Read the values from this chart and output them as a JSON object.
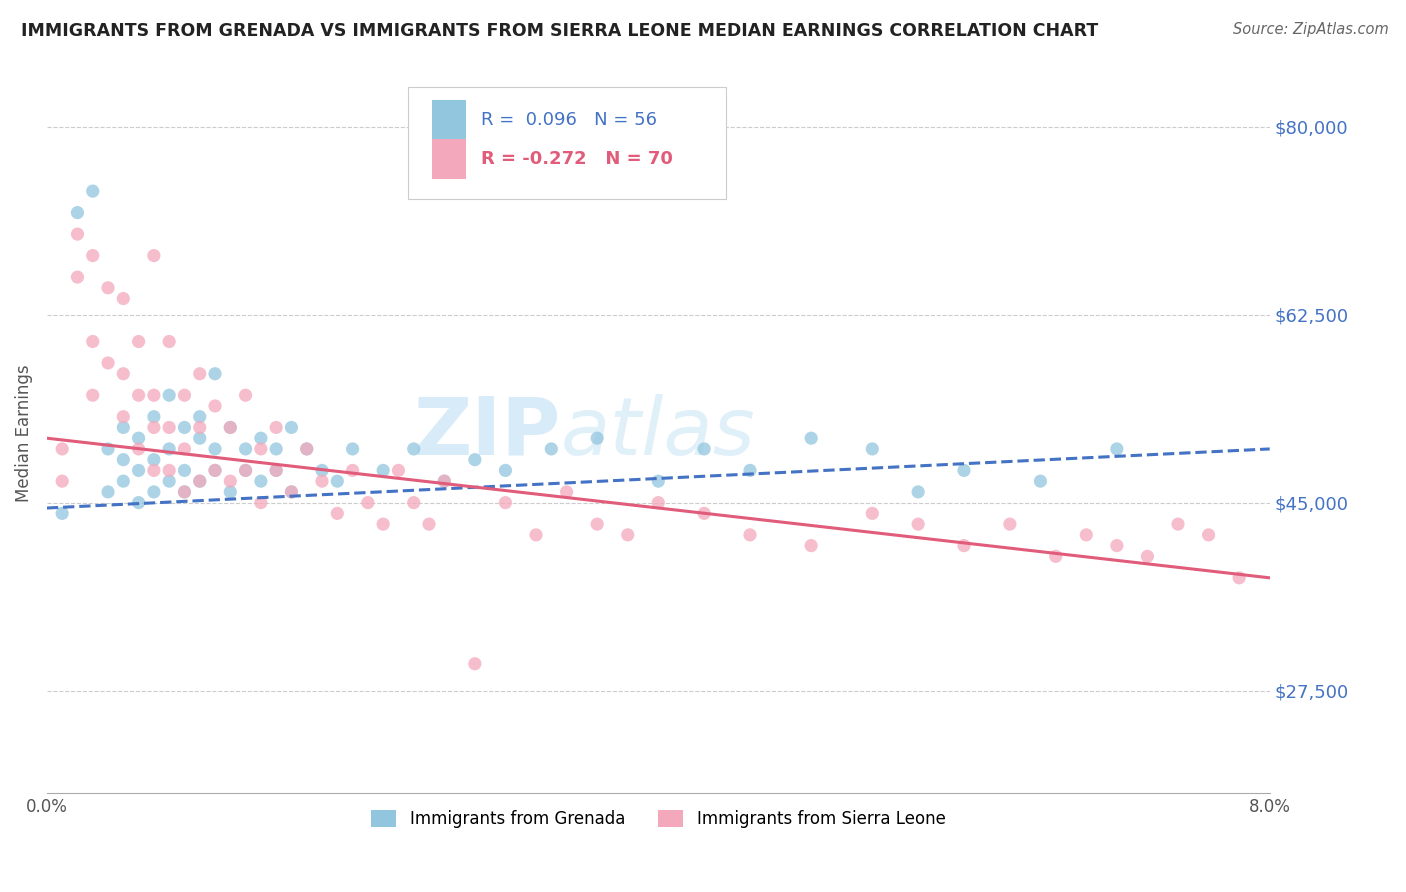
{
  "title": "IMMIGRANTS FROM GRENADA VS IMMIGRANTS FROM SIERRA LEONE MEDIAN EARNINGS CORRELATION CHART",
  "source": "Source: ZipAtlas.com",
  "ylabel": "Median Earnings",
  "y_ticks": [
    27500,
    45000,
    62500,
    80000
  ],
  "y_tick_labels": [
    "$27,500",
    "$45,000",
    "$62,500",
    "$80,000"
  ],
  "x_min": 0.0,
  "x_max": 0.08,
  "y_min": 18000,
  "y_max": 85000,
  "legend_label_1": "Immigrants from Grenada",
  "legend_label_2": "Immigrants from Sierra Leone",
  "R1": 0.096,
  "N1": 56,
  "R2": -0.272,
  "N2": 70,
  "color_blue": "#92c5de",
  "color_pink": "#f4a8bb",
  "color_blue_line": "#4472c4",
  "color_pink_line": "#e05c7a",
  "color_blue_text": "#4472c4",
  "color_pink_text": "#e05c7a",
  "watermark_zip": "ZIP",
  "watermark_atlas": "atlas",
  "background_color": "#ffffff",
  "grenada_x": [
    0.001,
    0.002,
    0.003,
    0.004,
    0.004,
    0.005,
    0.005,
    0.005,
    0.006,
    0.006,
    0.006,
    0.007,
    0.007,
    0.007,
    0.008,
    0.008,
    0.008,
    0.009,
    0.009,
    0.009,
    0.01,
    0.01,
    0.01,
    0.011,
    0.011,
    0.011,
    0.012,
    0.012,
    0.013,
    0.013,
    0.014,
    0.014,
    0.015,
    0.015,
    0.016,
    0.016,
    0.017,
    0.018,
    0.019,
    0.02,
    0.022,
    0.024,
    0.026,
    0.028,
    0.03,
    0.033,
    0.036,
    0.04,
    0.043,
    0.046,
    0.05,
    0.054,
    0.057,
    0.06,
    0.065,
    0.07
  ],
  "grenada_y": [
    44000,
    72000,
    74000,
    46000,
    50000,
    49000,
    52000,
    47000,
    48000,
    51000,
    45000,
    53000,
    49000,
    46000,
    55000,
    50000,
    47000,
    52000,
    48000,
    46000,
    51000,
    47000,
    53000,
    57000,
    50000,
    48000,
    46000,
    52000,
    50000,
    48000,
    51000,
    47000,
    50000,
    48000,
    46000,
    52000,
    50000,
    48000,
    47000,
    50000,
    48000,
    50000,
    47000,
    49000,
    48000,
    50000,
    51000,
    47000,
    50000,
    48000,
    51000,
    50000,
    46000,
    48000,
    47000,
    50000
  ],
  "sierra_leone_x": [
    0.001,
    0.001,
    0.002,
    0.002,
    0.003,
    0.003,
    0.003,
    0.004,
    0.004,
    0.005,
    0.005,
    0.005,
    0.006,
    0.006,
    0.006,
    0.007,
    0.007,
    0.007,
    0.007,
    0.008,
    0.008,
    0.008,
    0.009,
    0.009,
    0.009,
    0.01,
    0.01,
    0.01,
    0.011,
    0.011,
    0.012,
    0.012,
    0.013,
    0.013,
    0.014,
    0.014,
    0.015,
    0.015,
    0.016,
    0.017,
    0.018,
    0.019,
    0.02,
    0.021,
    0.022,
    0.023,
    0.024,
    0.025,
    0.026,
    0.028,
    0.03,
    0.032,
    0.034,
    0.036,
    0.038,
    0.04,
    0.043,
    0.046,
    0.05,
    0.054,
    0.057,
    0.06,
    0.063,
    0.066,
    0.068,
    0.07,
    0.072,
    0.074,
    0.076,
    0.078
  ],
  "sierra_leone_y": [
    47000,
    50000,
    70000,
    66000,
    68000,
    60000,
    55000,
    65000,
    58000,
    64000,
    57000,
    53000,
    60000,
    55000,
    50000,
    68000,
    55000,
    52000,
    48000,
    60000,
    52000,
    48000,
    55000,
    50000,
    46000,
    57000,
    52000,
    47000,
    54000,
    48000,
    52000,
    47000,
    55000,
    48000,
    50000,
    45000,
    52000,
    48000,
    46000,
    50000,
    47000,
    44000,
    48000,
    45000,
    43000,
    48000,
    45000,
    43000,
    47000,
    30000,
    45000,
    42000,
    46000,
    43000,
    42000,
    45000,
    44000,
    42000,
    41000,
    44000,
    43000,
    41000,
    43000,
    40000,
    42000,
    41000,
    40000,
    43000,
    42000,
    38000
  ],
  "blue_line_x0": 0.0,
  "blue_line_x1": 0.08,
  "blue_line_y0": 44500,
  "blue_line_y1": 50000,
  "pink_line_x0": 0.0,
  "pink_line_x1": 0.08,
  "pink_line_y0": 51000,
  "pink_line_y1": 38000
}
